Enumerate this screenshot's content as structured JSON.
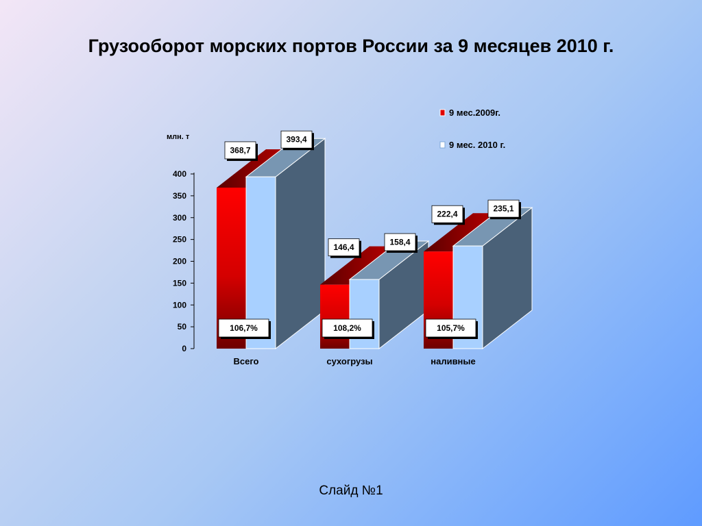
{
  "slide": {
    "title": "Грузооборот морских портов России за 9 месяцев 2010 г.",
    "footer": "Слайд №1"
  },
  "colors": {
    "series_2009": "#e00000",
    "series_2009_dark": "#7a0000",
    "series_2010": "#a8d0ff",
    "series_2010_side": "#4a6178",
    "series_2010_top": "#7896b2"
  },
  "chart_data": {
    "type": "bar",
    "ylabel": "млн. т",
    "ylim": [
      0,
      400
    ],
    "yticks": [
      "0",
      "50",
      "100",
      "150",
      "200",
      "250",
      "300",
      "350",
      "400"
    ],
    "categories": [
      "Всего",
      "сухогрузы",
      "наливные"
    ],
    "series": [
      {
        "name": "9 мес.2009г.",
        "values": [
          368.7,
          146.4,
          222.4
        ],
        "labels": [
          "368,7",
          "146,4",
          "222,4"
        ]
      },
      {
        "name": "9 мес. 2010 г.",
        "values": [
          393.4,
          158.4,
          235.1
        ],
        "labels": [
          "393,4",
          "158,4",
          "235,1"
        ]
      }
    ],
    "growth_labels": [
      "106,7%",
      "108,2%",
      "105,7%"
    ],
    "legend_position": "top-right"
  }
}
